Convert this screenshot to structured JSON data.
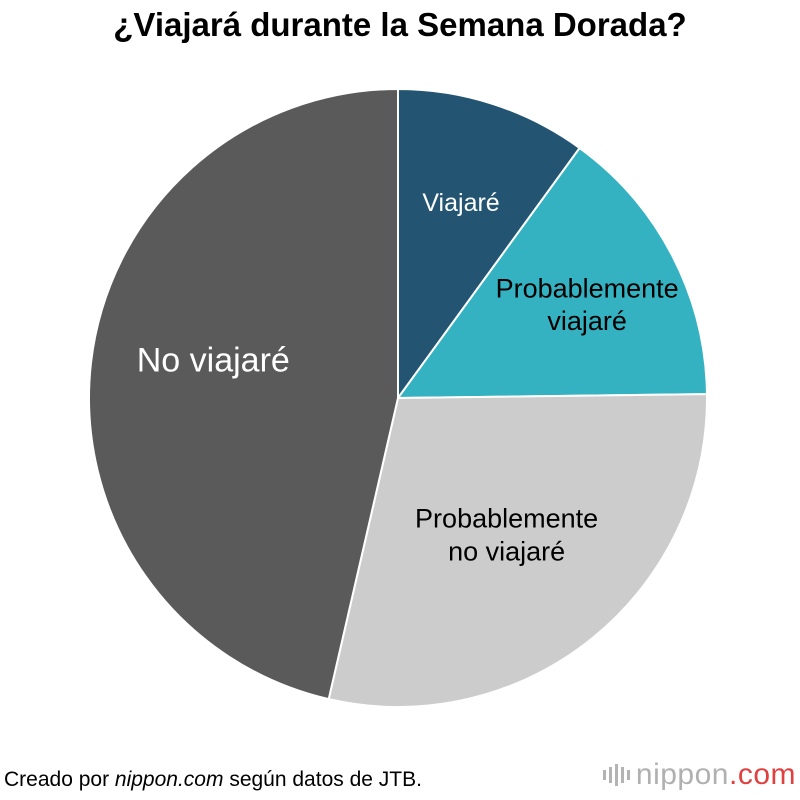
{
  "chart_data": {
    "type": "pie",
    "title": "¿Viajará durante la Semana Dorada?",
    "slices": [
      {
        "label": "Viajaré",
        "value": 10.0,
        "color": "#235573",
        "text_color": "#ffffff"
      },
      {
        "label": "Probablemente viajaré",
        "value": 14.8,
        "color": "#35b2c1",
        "text_color": "#000000"
      },
      {
        "label": "Probablemente no viajaré",
        "value": 28.8,
        "color": "#cccccc",
        "text_color": "#000000"
      },
      {
        "label": "No viajaré",
        "value": 46.4,
        "color": "#5a5a5a",
        "text_color": "#ffffff"
      }
    ]
  },
  "credit": {
    "prefix": "Creado por ",
    "site": "nippon.com",
    "suffix": " según datos de JTB."
  },
  "logo": {
    "text_main": "nippon",
    "text_accent": ".com"
  }
}
